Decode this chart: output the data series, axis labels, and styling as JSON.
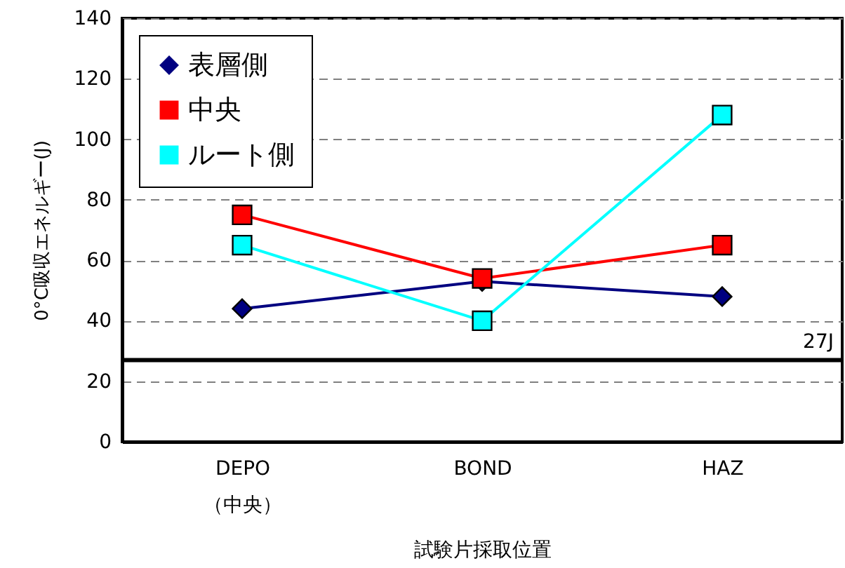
{
  "chart_data": {
    "type": "line",
    "xlabel": "試験片採取位置",
    "ylabel": "0°C吸収エネルギー(J)",
    "categories": [
      "DEPO\n（中央）",
      "BOND",
      "HAZ"
    ],
    "series": [
      {
        "name": "表層側",
        "color": "#000080",
        "marker": "diamond",
        "values": [
          44,
          53,
          48
        ]
      },
      {
        "name": "中央",
        "color": "#ff0000",
        "marker": "square",
        "values": [
          75,
          54,
          65
        ]
      },
      {
        "name": "ルート側",
        "color": "#00ffff",
        "marker": "square",
        "values": [
          65,
          40,
          108
        ]
      }
    ],
    "ylim": [
      0,
      140
    ],
    "yticks": [
      0,
      20,
      40,
      60,
      80,
      100,
      120,
      140
    ],
    "grid": "y",
    "legend": "top left",
    "ref_lines": [
      {
        "axis": "y",
        "value": 27,
        "label": "27J",
        "color": "#000000"
      }
    ]
  }
}
